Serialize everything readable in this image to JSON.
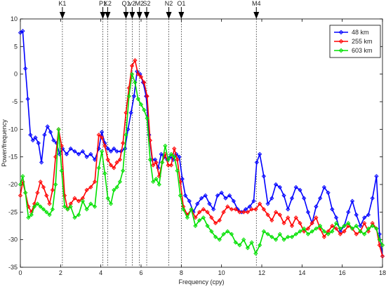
{
  "chart_data": {
    "type": "line",
    "xlabel": "Frequency (cpy)",
    "ylabel": "Power/frequency",
    "xlim": [
      0,
      18
    ],
    "ylim": [
      -35,
      10
    ],
    "xticks": [
      0,
      2,
      4,
      6,
      8,
      10,
      12,
      14,
      16,
      18
    ],
    "yticks": [
      -35,
      -30,
      -25,
      -20,
      -15,
      -10,
      -5,
      0,
      5,
      10
    ],
    "grid": false,
    "legend": "top-right",
    "tidal_lines": [
      {
        "label": "K1",
        "x": 2.09
      },
      {
        "label": "P1",
        "x": 4.1
      },
      {
        "label": "K2",
        "x": 4.34
      },
      {
        "label": "Q1",
        "x": 5.25
      },
      {
        "label": "v2",
        "x": 5.56
      },
      {
        "label": "M2",
        "x": 5.92
      },
      {
        "label": "S2",
        "x": 6.28
      },
      {
        "label": "N2",
        "x": 7.38
      },
      {
        "label": "O1",
        "x": 8.0
      },
      {
        "label": "M4",
        "x": 11.73
      }
    ],
    "series": [
      {
        "name": "48 km",
        "color": "#0000ff",
        "x": [
          0.0,
          0.12,
          0.25,
          0.37,
          0.5,
          0.62,
          0.75,
          0.9,
          1.05,
          1.2,
          1.35,
          1.5,
          1.65,
          1.8,
          1.95,
          2.1,
          2.3,
          2.5,
          2.7,
          2.9,
          3.1,
          3.3,
          3.5,
          3.7,
          3.9,
          4.05,
          4.2,
          4.35,
          4.5,
          4.65,
          4.8,
          5.0,
          5.2,
          5.35,
          5.5,
          5.65,
          5.8,
          5.95,
          6.1,
          6.25,
          6.4,
          6.55,
          6.7,
          6.85,
          7.0,
          7.15,
          7.3,
          7.45,
          7.6,
          7.75,
          7.9,
          8.05,
          8.2,
          8.4,
          8.6,
          8.8,
          9.0,
          9.2,
          9.4,
          9.6,
          9.8,
          10.0,
          10.2,
          10.4,
          10.6,
          10.8,
          11.0,
          11.2,
          11.4,
          11.6,
          11.75,
          11.9,
          12.1,
          12.3,
          12.5,
          12.7,
          12.9,
          13.1,
          13.3,
          13.5,
          13.7,
          13.9,
          14.1,
          14.3,
          14.5,
          14.7,
          14.9,
          15.1,
          15.3,
          15.5,
          15.7,
          15.9,
          16.1,
          16.3,
          16.5,
          16.7,
          16.9,
          17.1,
          17.3,
          17.5,
          17.7,
          17.85,
          18.0
        ],
        "y": [
          7.5,
          7.8,
          1.0,
          -4.5,
          -11.0,
          -12.0,
          -11.5,
          -12.5,
          -16.0,
          -11.0,
          -9.5,
          -10.5,
          -12.0,
          -12.5,
          -14.5,
          -13.5,
          -14.5,
          -13.5,
          -14.0,
          -14.5,
          -14.0,
          -15.0,
          -14.5,
          -15.5,
          -13.5,
          -10.5,
          -12.5,
          -13.5,
          -14.0,
          -13.5,
          -14.0,
          -14.0,
          -13.5,
          -10.0,
          -7.0,
          -4.0,
          0.5,
          0.0,
          -1.5,
          -4.0,
          -11.0,
          -15.5,
          -15.5,
          -17.0,
          -14.5,
          -15.0,
          -15.5,
          -15.0,
          -15.5,
          -14.5,
          -15.0,
          -19.0,
          -22.0,
          -23.0,
          -25.0,
          -23.5,
          -22.5,
          -22.0,
          -23.5,
          -24.5,
          -22.0,
          -21.5,
          -22.5,
          -22.0,
          -23.0,
          -24.5,
          -25.0,
          -24.5,
          -24.0,
          -23.0,
          -16.0,
          -14.5,
          -18.5,
          -23.5,
          -22.5,
          -20.0,
          -20.5,
          -22.0,
          -24.5,
          -22.5,
          -20.5,
          -21.0,
          -22.5,
          -25.0,
          -27.0,
          -24.0,
          -22.5,
          -20.5,
          -21.5,
          -24.5,
          -26.0,
          -28.5,
          -27.5,
          -25.0,
          -23.0,
          -25.5,
          -27.5,
          -26.0,
          -25.5,
          -22.5,
          -18.5,
          -29.0,
          -33.0
        ]
      },
      {
        "name": "255 km",
        "color": "#ff0000",
        "x": [
          0.0,
          0.12,
          0.25,
          0.4,
          0.55,
          0.7,
          0.85,
          1.0,
          1.15,
          1.3,
          1.45,
          1.6,
          1.75,
          1.9,
          2.05,
          2.2,
          2.35,
          2.5,
          2.7,
          2.9,
          3.1,
          3.3,
          3.5,
          3.7,
          3.9,
          4.05,
          4.2,
          4.35,
          4.5,
          4.65,
          4.8,
          4.95,
          5.1,
          5.25,
          5.4,
          5.55,
          5.7,
          5.85,
          6.0,
          6.15,
          6.3,
          6.45,
          6.6,
          6.75,
          6.9,
          7.05,
          7.2,
          7.35,
          7.5,
          7.65,
          7.8,
          7.95,
          8.1,
          8.3,
          8.5,
          8.7,
          8.9,
          9.1,
          9.3,
          9.5,
          9.7,
          9.9,
          10.1,
          10.3,
          10.5,
          10.7,
          10.9,
          11.1,
          11.3,
          11.5,
          11.7,
          11.9,
          12.1,
          12.3,
          12.5,
          12.7,
          12.9,
          13.1,
          13.3,
          13.5,
          13.7,
          13.9,
          14.1,
          14.3,
          14.5,
          14.7,
          14.9,
          15.1,
          15.3,
          15.5,
          15.7,
          15.9,
          16.1,
          16.3,
          16.5,
          16.7,
          16.9,
          17.1,
          17.3,
          17.5,
          17.7,
          17.85,
          18.0
        ],
        "y": [
          -22.0,
          -19.5,
          -21.5,
          -24.0,
          -25.0,
          -23.5,
          -21.5,
          -19.5,
          -20.5,
          -22.0,
          -23.5,
          -21.0,
          -15.0,
          -10.0,
          -13.0,
          -22.0,
          -24.5,
          -23.5,
          -22.5,
          -23.0,
          -22.5,
          -21.0,
          -20.5,
          -19.5,
          -11.0,
          -11.5,
          -13.0,
          -15.5,
          -16.5,
          -17.0,
          -16.0,
          -15.5,
          -12.5,
          -7.0,
          -2.5,
          1.5,
          2.5,
          0.0,
          -0.5,
          -1.5,
          -4.0,
          -12.0,
          -16.5,
          -16.0,
          -18.5,
          -16.0,
          -14.5,
          -16.5,
          -16.5,
          -13.5,
          -15.5,
          -19.5,
          -24.0,
          -25.5,
          -24.5,
          -26.0,
          -25.0,
          -24.5,
          -25.0,
          -26.0,
          -27.0,
          -26.5,
          -25.0,
          -24.0,
          -24.5,
          -24.5,
          -25.0,
          -25.0,
          -25.0,
          -24.5,
          -24.5,
          -23.5,
          -24.5,
          -25.5,
          -26.5,
          -25.0,
          -25.5,
          -27.0,
          -26.0,
          -27.5,
          -26.0,
          -27.0,
          -28.5,
          -28.0,
          -27.0,
          -26.0,
          -28.0,
          -29.5,
          -28.5,
          -27.5,
          -28.0,
          -29.0,
          -28.5,
          -27.5,
          -28.0,
          -29.0,
          -28.5,
          -27.0,
          -28.5,
          -27.0,
          -28.0,
          -31.0,
          -33.0
        ]
      },
      {
        "name": "603 km",
        "color": "#00e000",
        "x": [
          0.0,
          0.12,
          0.25,
          0.4,
          0.55,
          0.7,
          0.85,
          1.0,
          1.15,
          1.3,
          1.45,
          1.6,
          1.75,
          1.9,
          2.05,
          2.2,
          2.35,
          2.5,
          2.7,
          2.9,
          3.1,
          3.3,
          3.5,
          3.7,
          3.9,
          4.05,
          4.2,
          4.35,
          4.5,
          4.65,
          4.8,
          4.95,
          5.1,
          5.25,
          5.4,
          5.55,
          5.7,
          5.85,
          6.0,
          6.15,
          6.3,
          6.45,
          6.6,
          6.75,
          6.9,
          7.05,
          7.2,
          7.35,
          7.5,
          7.65,
          7.8,
          7.95,
          8.1,
          8.3,
          8.5,
          8.7,
          8.9,
          9.1,
          9.3,
          9.5,
          9.7,
          9.9,
          10.1,
          10.3,
          10.5,
          10.7,
          10.9,
          11.1,
          11.3,
          11.5,
          11.7,
          11.9,
          12.1,
          12.3,
          12.5,
          12.7,
          12.9,
          13.1,
          13.3,
          13.5,
          13.7,
          13.9,
          14.1,
          14.3,
          14.5,
          14.7,
          14.9,
          15.1,
          15.3,
          15.5,
          15.7,
          15.9,
          16.1,
          16.3,
          16.5,
          16.7,
          16.9,
          17.1,
          17.3,
          17.5,
          17.7,
          17.85,
          18.0
        ],
        "y": [
          -20.0,
          -18.5,
          -21.5,
          -26.0,
          -25.5,
          -24.0,
          -23.5,
          -24.0,
          -24.5,
          -25.0,
          -25.5,
          -24.5,
          -20.0,
          -10.0,
          -17.5,
          -24.0,
          -24.5,
          -24.0,
          -26.0,
          -25.5,
          -23.0,
          -24.5,
          -23.5,
          -24.0,
          -17.0,
          -14.0,
          -18.0,
          -22.5,
          -23.5,
          -21.0,
          -20.5,
          -19.5,
          -17.5,
          -11.0,
          -4.0,
          0.0,
          -1.5,
          -4.5,
          -5.5,
          -6.5,
          -8.0,
          -15.5,
          -19.5,
          -19.0,
          -20.0,
          -16.0,
          -13.0,
          -15.5,
          -14.5,
          -15.0,
          -17.5,
          -22.0,
          -24.5,
          -26.0,
          -24.5,
          -27.5,
          -26.5,
          -26.0,
          -27.5,
          -28.5,
          -29.5,
          -30.0,
          -29.0,
          -28.5,
          -29.0,
          -30.5,
          -31.0,
          -30.0,
          -31.5,
          -30.5,
          -32.5,
          -31.0,
          -28.5,
          -29.0,
          -29.5,
          -30.0,
          -29.0,
          -30.0,
          -29.5,
          -29.5,
          -29.0,
          -28.5,
          -28.0,
          -29.0,
          -28.5,
          -28.0,
          -27.5,
          -28.5,
          -29.0,
          -28.5,
          -27.0,
          -28.0,
          -27.5,
          -27.0,
          -28.0,
          -27.5,
          -28.5,
          -29.0,
          -28.0,
          -27.5,
          -28.0,
          -30.0,
          -31.0
        ]
      }
    ]
  }
}
